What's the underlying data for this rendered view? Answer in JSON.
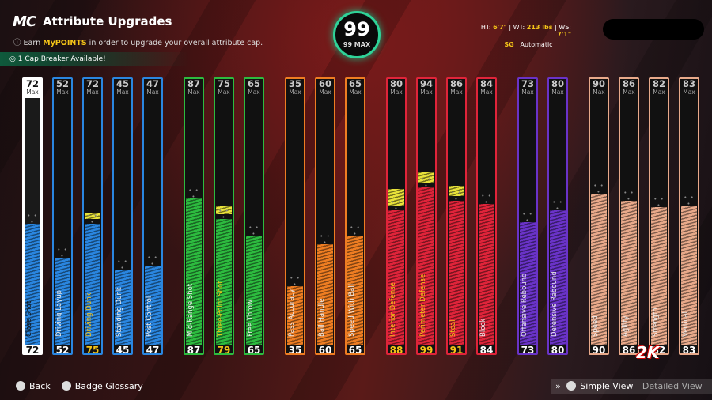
{
  "header": {
    "logo": "MC",
    "title": "Attribute Upgrades",
    "sub_prefix": "Earn ",
    "sub_highlight": "MyPOINTS",
    "sub_suffix": " in order to upgrade your overall attribute cap.",
    "cap_breaker": "1 Cap Breaker Available!"
  },
  "overall": {
    "value": "99",
    "max_label": "99 MAX"
  },
  "physicals": {
    "ht_label": "HT:",
    "ht": "6'7\"",
    "wt_label": "WT:",
    "wt": "213 lbs",
    "ws_label": "WS:",
    "ws": "7'1\"",
    "position": "SG",
    "sep": "|",
    "shot": "Automatic"
  },
  "max_word": "Max",
  "dots": "• • •",
  "attributes": [
    {
      "name": "Close Shot",
      "max": "72",
      "current": "72",
      "color": "#2a86e0",
      "boost": 0
    },
    {
      "name": "Driving Layup",
      "max": "52",
      "current": "52",
      "color": "#2a86e0",
      "boost": 0
    },
    {
      "name": "Driving Dunk",
      "max": "72",
      "current": "75",
      "color": "#2a86e0",
      "boost": 3
    },
    {
      "name": "Standing Dunk",
      "max": "45",
      "current": "45",
      "color": "#2a86e0",
      "boost": 0
    },
    {
      "name": "Post Control",
      "max": "47",
      "current": "47",
      "color": "#2a86e0",
      "boost": 0
    },
    {
      "name": "Mid-Range Shot",
      "max": "87",
      "current": "87",
      "color": "#2dbb3f",
      "boost": 0
    },
    {
      "name": "Three-Point Shot",
      "max": "75",
      "current": "79",
      "color": "#2dbb3f",
      "boost": 4
    },
    {
      "name": "Free Throw",
      "max": "65",
      "current": "65",
      "color": "#2dbb3f",
      "boost": 0
    },
    {
      "name": "Pass Accuracy",
      "max": "35",
      "current": "35",
      "color": "#ee7d22",
      "boost": 0
    },
    {
      "name": "Ball Handle",
      "max": "60",
      "current": "60",
      "color": "#ee7d22",
      "boost": 0
    },
    {
      "name": "Speed With Ball",
      "max": "65",
      "current": "65",
      "color": "#ee7d22",
      "boost": 0
    },
    {
      "name": "Interior Defense",
      "max": "80",
      "current": "88",
      "color": "#e0243a",
      "boost": 8
    },
    {
      "name": "Perimeter Defense",
      "max": "94",
      "current": "99",
      "color": "#e0243a",
      "boost": 5
    },
    {
      "name": "Steal",
      "max": "86",
      "current": "91",
      "color": "#e0243a",
      "boost": 5
    },
    {
      "name": "Block",
      "max": "84",
      "current": "84",
      "color": "#e0243a",
      "boost": 0
    },
    {
      "name": "Offensive Rebound",
      "max": "73",
      "current": "73",
      "color": "#6a33c8",
      "boost": 0
    },
    {
      "name": "Defensive Rebound",
      "max": "80",
      "current": "80",
      "color": "#6a33c8",
      "boost": 0
    },
    {
      "name": "Speed",
      "max": "90",
      "current": "90",
      "color": "#e8a98a",
      "boost": 0
    },
    {
      "name": "Agility",
      "max": "86",
      "current": "86",
      "color": "#e8a98a",
      "boost": 0
    },
    {
      "name": "Strength",
      "max": "82",
      "current": "82",
      "color": "#e8a98a",
      "boost": 0
    },
    {
      "name": "Vertical",
      "max": "83",
      "current": "83",
      "color": "#e8a98a",
      "boost": 0
    }
  ],
  "footer": {
    "back": "Back",
    "badge_glossary": "Badge Glossary",
    "chevrons": "»",
    "simple_view": "Simple View",
    "detailed_view": "Detailed View"
  },
  "brand": "2K",
  "icons": [
    "info-icon",
    "cap-breaker-icon",
    "lock-icon",
    "controller-button-icon"
  ]
}
